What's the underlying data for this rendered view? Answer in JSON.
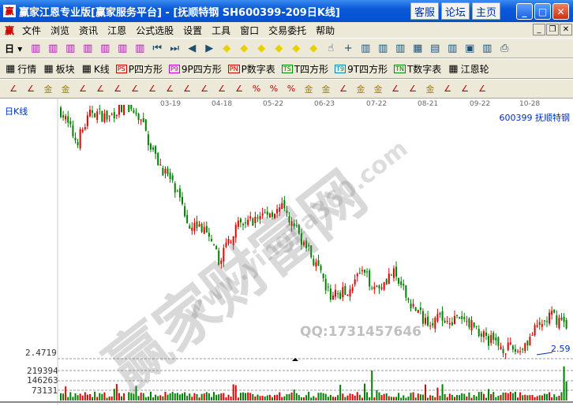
{
  "window": {
    "title": "赢家江恩专业版[赢家服务平台] - [抚顺特钢   SH600399-209日K线]",
    "buttons": [
      "客服",
      "论坛",
      "主页"
    ],
    "logo": "赢"
  },
  "menu": [
    "文件",
    "浏览",
    "资讯",
    "江恩",
    "公式选股",
    "设置",
    "工具",
    "窗口",
    "交易委托",
    "帮助"
  ],
  "toolbar1": {
    "period": "日",
    "icons": [
      "draw-icon",
      "info-icon",
      "k3-icon",
      "k9-icon",
      "candle-icon",
      "power-icon",
      "fan-icon",
      "first-icon",
      "last-icon",
      "prev-icon",
      "next-icon",
      "left-arrow-icon",
      "right-arrow-icon",
      "expand-icon",
      "shrink-icon",
      "zoom-in-icon",
      "zoom-out-icon",
      "hand-icon",
      "crosshair-icon",
      "line-icon",
      "tree-icon",
      "cycle-icon",
      "calendar-icon",
      "calculator-icon",
      "notes-icon",
      "save-icon",
      "network-icon",
      "print-icon"
    ]
  },
  "toolbar2": [
    {
      "badge": "",
      "label": "行情",
      "color": "#000"
    },
    {
      "badge": "",
      "label": "板块",
      "color": "#000"
    },
    {
      "badge": "",
      "label": "K线",
      "color": "#000"
    },
    {
      "badge": "PS",
      "label": "P四方形",
      "color": "#c00"
    },
    {
      "badge": "P9",
      "label": "9P四方形",
      "color": "#c0c"
    },
    {
      "badge": "PN",
      "label": "P数字表",
      "color": "#c00"
    },
    {
      "badge": "TS",
      "label": "T四方形",
      "color": "#080"
    },
    {
      "badge": "T9",
      "label": "9T四方形",
      "color": "#08a"
    },
    {
      "badge": "TN",
      "label": "T数字表",
      "color": "#080"
    },
    {
      "badge": "",
      "label": "江恩轮",
      "color": "#000"
    }
  ],
  "toolbar3": [
    "pen-icon",
    "grid-icon",
    "gold-icon",
    "gold2-icon",
    "fib-icon",
    "spiral-icon",
    "pen2-icon",
    "box-icon",
    "fan-lines-icon",
    "square-icon",
    "diag-icon",
    "angle-icon",
    "wave-icon",
    "table-icon",
    "percent-fan-icon",
    "percent-icon",
    "percent-red-icon",
    "gold-circle-icon",
    "gold-lines-icon",
    "tool-icon",
    "gold-sine-icon",
    "gold-red-icon",
    "j-lines-icon",
    "f-lines-icon",
    "gold-lines2-icon",
    "speed-icon",
    "speed2-icon",
    "angle2-icon"
  ],
  "chart": {
    "period_label": "日K线",
    "stock": "600399  抚顺特钢",
    "dates": [
      "03-19",
      "04-18",
      "05-22",
      "06-23",
      "07-22",
      "08-21",
      "09-22",
      "10-28"
    ],
    "price_axis": "2.4719",
    "last_low_label": "2.59",
    "volume_axis": [
      "219394",
      "146263",
      "73131"
    ],
    "watermark": "赢家财富网",
    "watermark_url": "www.yingjia360.com",
    "qq": "QQ:1731457646",
    "colors": {
      "up": "#e00000",
      "down": "#008000"
    }
  },
  "chart_data": {
    "type": "candlestick",
    "bars": 209,
    "close_path": [
      5.89,
      5.46,
      5.89,
      5.78,
      6.0,
      5.78,
      5.24,
      4.91,
      4.37,
      4.26,
      3.83,
      4.26,
      4.37,
      4.48,
      4.53,
      4.21,
      3.83,
      3.34,
      3.39,
      3.66,
      3.45,
      3.66,
      3.28,
      3.01,
      3.01,
      3.01,
      2.96,
      2.74,
      2.63,
      2.58,
      2.85,
      3.07,
      2.96
    ],
    "low_marked": 2.59,
    "volume_ticks": [
      73131,
      146263,
      219394
    ]
  }
}
